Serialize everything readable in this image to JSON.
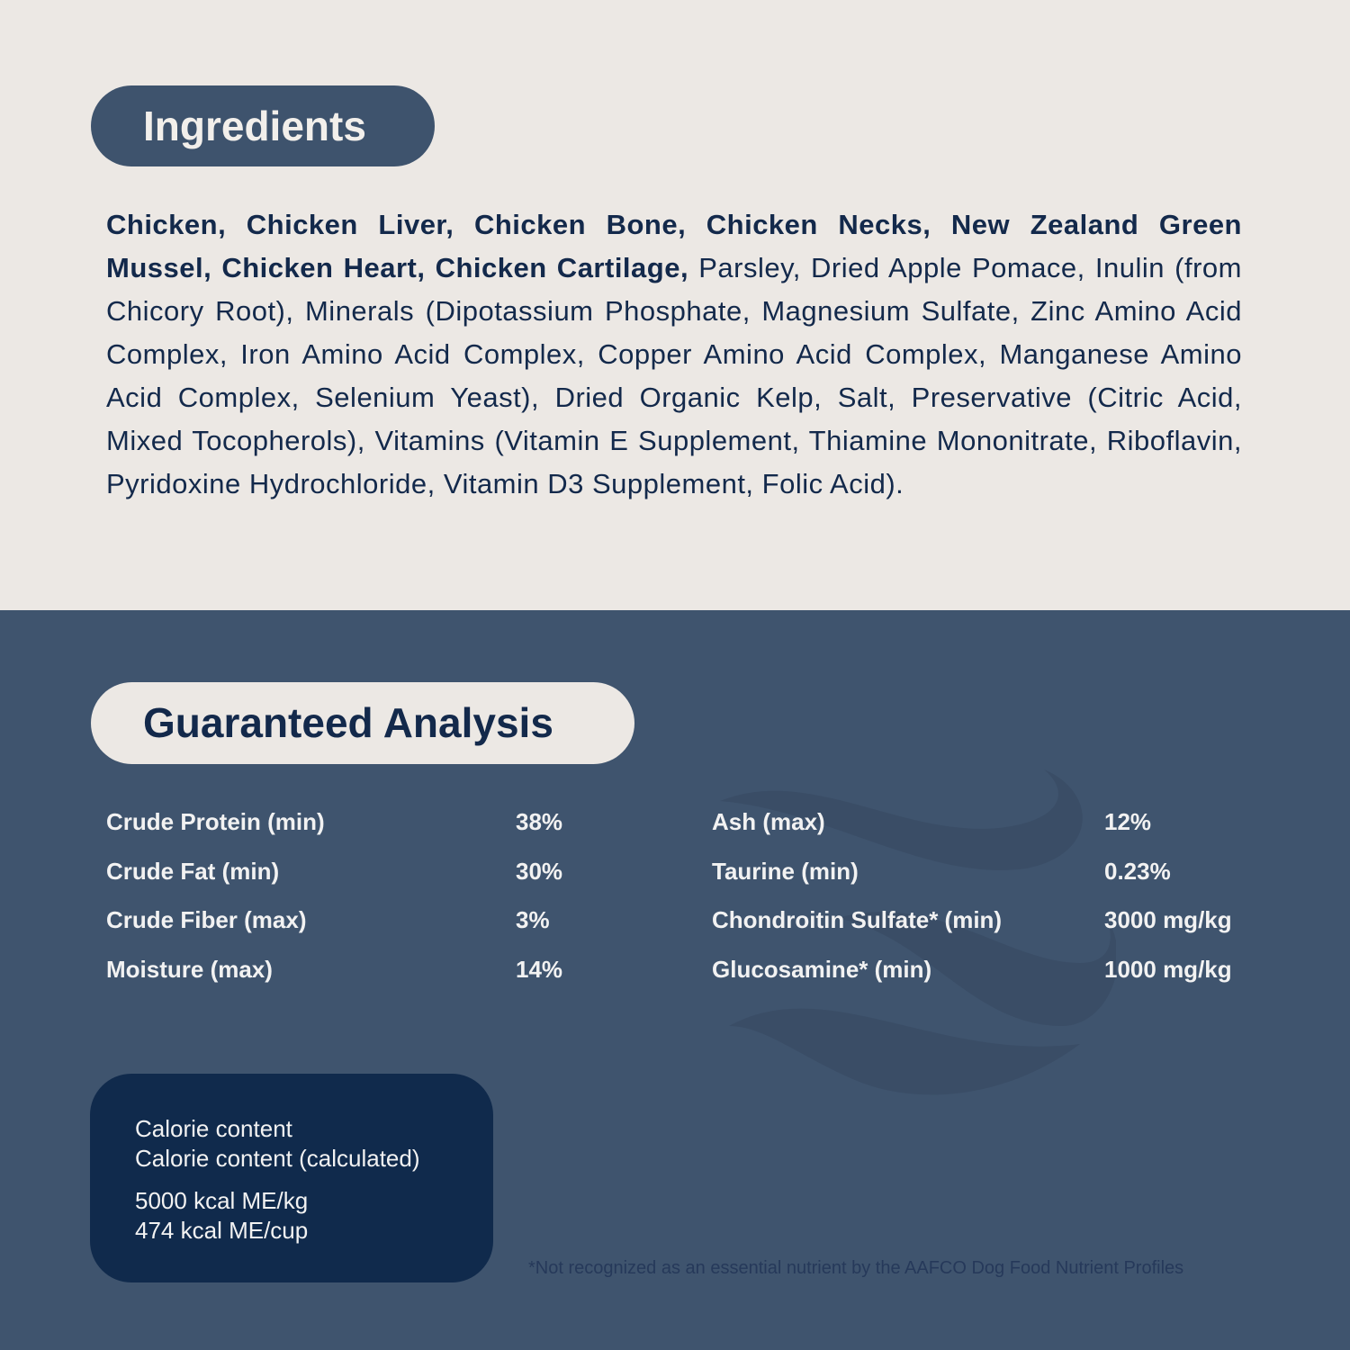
{
  "ingredients": {
    "title": "Ingredients",
    "bold_text": "Chicken, Chicken Liver, Chicken Bone, Chicken Necks, New Zealand Green Mussel, Chicken Heart, Chicken Cartilage,",
    "regular_text": " Parsley, Dried Apple Pomace, Inulin (from Chicory Root), Minerals (Dipotassium Phosphate, Magnesium Sulfate, Zinc Amino Acid Complex, Iron Amino Acid Complex, Copper Amino Acid Complex, Manganese Amino Acid Complex, Selenium Yeast), Dried Organic Kelp, Salt, Preservative (Citric Acid, Mixed Tocopherols), Vitamins (Vitamin E Supplement, Thiamine Mononitrate, Riboflavin, Pyridoxine Hydrochloride, Vitamin D3 Supplement, Folic Acid)."
  },
  "analysis": {
    "title": "Guaranteed Analysis",
    "left": [
      {
        "label": "Crude Protein (min)",
        "value": "38%"
      },
      {
        "label": "Crude Fat (min)",
        "value": "30%"
      },
      {
        "label": "Crude Fiber (max)",
        "value": "3%"
      },
      {
        "label": "Moisture (max)",
        "value": "14%"
      }
    ],
    "right": [
      {
        "label": "Ash (max)",
        "value": "12%"
      },
      {
        "label": "Taurine (min)",
        "value": "0.23%"
      },
      {
        "label": "Chondroitin Sulfate* (min)",
        "value": "3000 mg/kg"
      },
      {
        "label": "Glucosamine* (min)",
        "value": "1000 mg/kg"
      }
    ]
  },
  "calorie": {
    "line1": "Calorie content",
    "line2": "Calorie content (calculated)",
    "value1": "5000 kcal ME/kg",
    "value2": "474 kcal ME/cup"
  },
  "footnote": "*Not recognized as an essential nutrient by the AAFCO Dog Food Nutrient Profiles",
  "colors": {
    "top_bg": "#ece8e4",
    "bottom_bg": "#3f546e",
    "navy": "#13294b",
    "calorie_bg": "#102a4c"
  },
  "decoration": "wave-icon"
}
